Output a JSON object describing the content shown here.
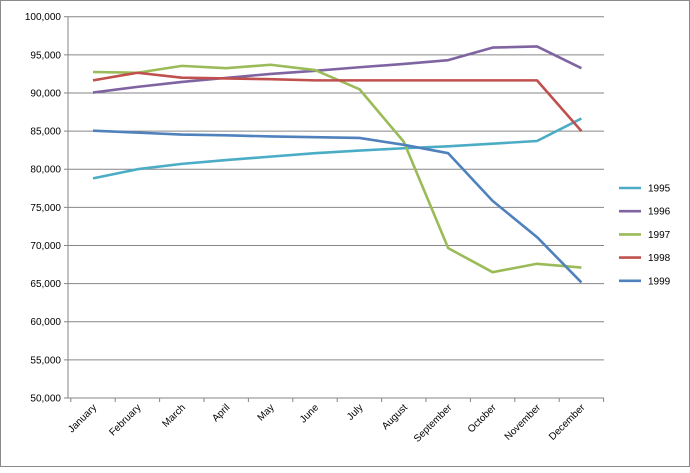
{
  "chart_data": {
    "type": "line",
    "title": "",
    "xlabel": "",
    "ylabel": "",
    "categories": [
      "January",
      "February",
      "March",
      "April",
      "May",
      "June",
      "July",
      "August",
      "September",
      "October",
      "November",
      "December"
    ],
    "ylim": [
      50000,
      100000
    ],
    "yticks": [
      50000,
      55000,
      60000,
      65000,
      70000,
      75000,
      80000,
      85000,
      90000,
      95000,
      100000
    ],
    "ytick_labels": [
      "50,000",
      "55,000",
      "60,000",
      "65,000",
      "70,000",
      "75,000",
      "80,000",
      "85,000",
      "90,000",
      "95,000",
      "100,000"
    ],
    "grid": true,
    "legend_position": "right",
    "series": [
      {
        "name": "1995",
        "color": "#4bacc6",
        "values": [
          78800,
          80000,
          80700,
          81200,
          81650,
          82100,
          82450,
          82750,
          83000,
          83350,
          83700,
          86650
        ]
      },
      {
        "name": "1996",
        "color": "#8064a2",
        "values": [
          90050,
          90800,
          91450,
          91980,
          92500,
          92900,
          93370,
          93800,
          94300,
          95950,
          96100,
          93250
        ]
      },
      {
        "name": "1997",
        "color": "#9bbb59",
        "values": [
          92750,
          92650,
          93550,
          93250,
          93700,
          93000,
          90500,
          83600,
          69650,
          66500,
          67600,
          67100
        ]
      },
      {
        "name": "1998",
        "color": "#c0504d",
        "values": [
          91650,
          92650,
          92000,
          91900,
          91800,
          91650,
          91650,
          91650,
          91650,
          91650,
          91650,
          85000
        ]
      },
      {
        "name": "1999",
        "color": "#4f81bd",
        "values": [
          85050,
          84800,
          84550,
          84450,
          84300,
          84200,
          84100,
          83200,
          82100,
          75850,
          71100,
          65150
        ]
      }
    ]
  }
}
